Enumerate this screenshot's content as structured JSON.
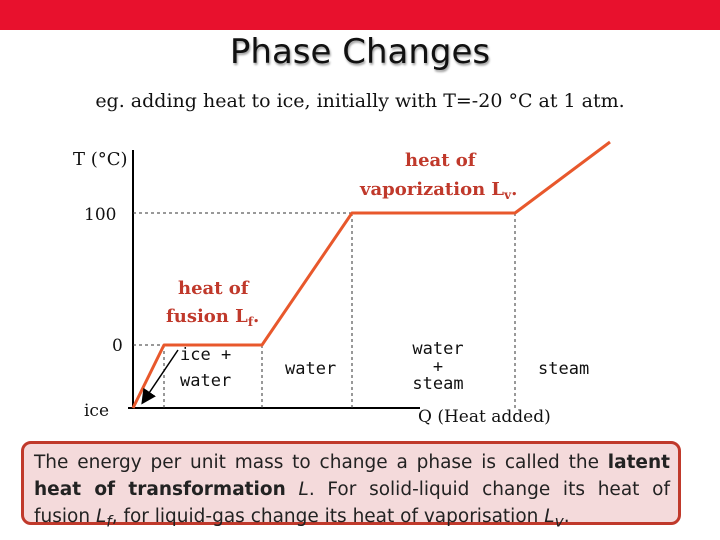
{
  "header": {
    "title": "Phase Changes",
    "subtitle": "eg. adding heat to ice, initially with T=-20 °C at 1 atm."
  },
  "diagram": {
    "y_axis_label": "T (°C)",
    "x_axis_label": "Q (Heat added)",
    "tick_100": "100",
    "tick_0": "0",
    "origin_label": "ice",
    "annotations": {
      "fusion_line1": "heat of",
      "fusion_line2": "fusion L",
      "fusion_sub": "f",
      "vapor_line1": "heat of",
      "vapor_line2": "vaporization L",
      "vapor_sub": "v"
    },
    "regions": {
      "ice_water_1": "ice +",
      "ice_water_2": "water",
      "water": "water",
      "water_steam_1": "water",
      "water_steam_2": "+",
      "water_steam_3": "steam",
      "steam": "steam"
    },
    "colors": {
      "curve": "#e8582c",
      "annotation": "#c0392b",
      "axis": "#000000"
    }
  },
  "definition_box": {
    "part1": "The energy per unit mass to change a phase is called the ",
    "bold1": "latent heat of transformation",
    "part2": " ",
    "italic_L": "L",
    "part3": ". For solid-liquid change its heat of fusion ",
    "italic_Lf": "L",
    "sub_f": "f",
    "part4": ", for liquid-gas change its heat of vaporisation ",
    "italic_Lv": "L",
    "sub_v": "v",
    "part5": "."
  }
}
